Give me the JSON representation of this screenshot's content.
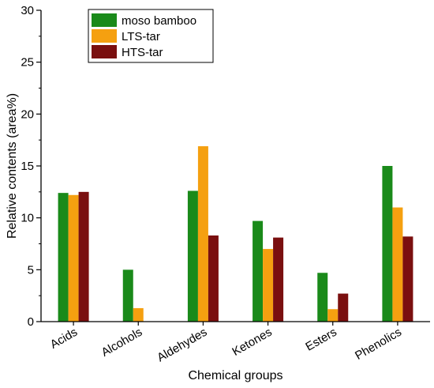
{
  "chart_data": {
    "type": "bar",
    "title": "",
    "xlabel": "Chemical groups",
    "ylabel": "Relative contents (area%)",
    "ylim": [
      0,
      30
    ],
    "yticks": [
      0,
      5,
      10,
      15,
      20,
      25,
      30
    ],
    "categories": [
      "Acids",
      "Alcohols",
      "Aldehydes",
      "Ketones",
      "Esters",
      "Phenolics"
    ],
    "series": [
      {
        "name": "moso bamboo",
        "color": "#1a8a1a",
        "values": [
          12.4,
          5.0,
          12.6,
          9.7,
          4.7,
          15.0
        ]
      },
      {
        "name": "LTS-tar",
        "color": "#f5a010",
        "values": [
          12.2,
          1.3,
          16.9,
          7.0,
          1.2,
          11.0
        ]
      },
      {
        "name": "HTS-tar",
        "color": "#7a0f0f",
        "values": [
          12.5,
          0.0,
          8.3,
          8.1,
          2.7,
          8.2
        ]
      }
    ],
    "legend_position": "top-left",
    "grid": false
  }
}
